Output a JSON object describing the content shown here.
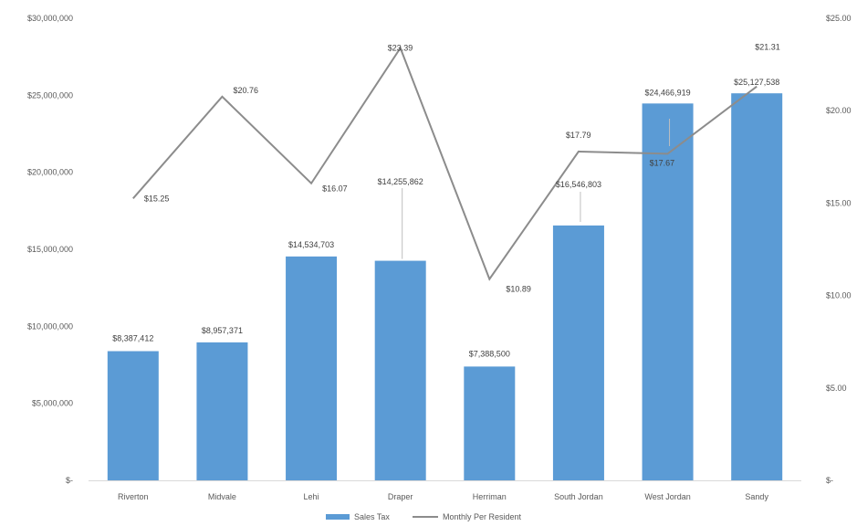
{
  "chart_data": {
    "type": "bar",
    "categories": [
      "Riverton",
      "Midvale",
      "Lehi",
      "Draper",
      "Herriman",
      "South Jordan",
      "West Jordan",
      "Sandy"
    ],
    "series": [
      {
        "name": "Sales Tax",
        "kind": "bar",
        "axis": "left",
        "color": "#5b9bd5",
        "values": [
          8387412,
          8957371,
          14534703,
          14255862,
          7388500,
          16546803,
          24466919,
          25127538
        ],
        "labels": [
          "$8,387,412",
          "$8,957,371",
          "$14,534,703",
          "$14,255,862",
          "$7,388,500",
          "$16,546,803",
          "$24,466,919",
          "$25,127,538"
        ]
      },
      {
        "name": "Monthly Per Resident",
        "kind": "line",
        "axis": "right",
        "color": "#8c8c8c",
        "values": [
          15.25,
          20.76,
          16.07,
          23.39,
          10.89,
          17.79,
          17.67,
          21.31
        ],
        "labels": [
          "$15.25",
          "$20.76",
          "$16.07",
          "$23.39",
          "$10.89",
          "$17.79",
          "$17.67",
          "$21.31"
        ]
      }
    ],
    "left_axis": {
      "ylim": [
        0,
        30000000
      ],
      "ticks": [
        "$-",
        "$5,000,000",
        "$10,000,000",
        "$15,000,000",
        "$20,000,000",
        "$25,000,000",
        "$30,000,000"
      ]
    },
    "right_axis": {
      "ylim": [
        0,
        25
      ],
      "ticks": [
        "$-",
        "$5.00",
        "$10.00",
        "$15.00",
        "$20.00",
        "$25.00"
      ]
    },
    "grid": false,
    "legend": "bottom"
  }
}
